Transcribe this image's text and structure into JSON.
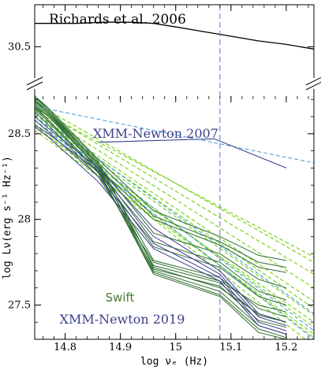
{
  "chart_data": {
    "type": "line",
    "xlabel": "log νₑ (Hz)",
    "ylabel": "log Lν(erg s⁻¹ Hz⁻¹)",
    "xlim": [
      14.745,
      15.25
    ],
    "ylim": [
      27.3,
      28.72
    ],
    "top_panel_ylim": [
      30.39,
      30.68
    ],
    "x_ticks": [
      "14.8",
      "14.9",
      "15",
      "15.1",
      "15.2"
    ],
    "y_ticks": [
      "27.5",
      "28",
      "28.5"
    ],
    "top_y_ticks": [
      "30.5"
    ],
    "vline_x": 15.08,
    "colors": {
      "richards": "#000000",
      "xmm2007": "#3b3f8c",
      "xmm2007_fit": "#3a9ad9",
      "vline": "#6b6fd0",
      "swift": "#2e6e2e",
      "swift_fit": "#7ed321",
      "xmm2019": "#3b3f8c",
      "xmm2019_fit": "#3a9ad9"
    },
    "annotations": {
      "richards": "Richards et al. 2006",
      "xmm2007": "XMM-Newton 2007",
      "swift": "Swift",
      "xmm2019": "XMM-Newton 2019"
    },
    "richards_sed": {
      "x": [
        14.745,
        14.78,
        14.82,
        14.87,
        14.92,
        14.96,
        15.0,
        15.05,
        15.1,
        15.15,
        15.2,
        15.25
      ],
      "y": [
        30.6,
        30.6,
        30.6,
        30.605,
        30.605,
        30.6,
        30.585,
        30.565,
        30.545,
        30.525,
        30.51,
        30.49
      ]
    },
    "xmm2007": {
      "line": {
        "x": [
          14.86,
          14.96,
          15.07,
          15.2
        ],
        "y": [
          28.45,
          28.46,
          28.47,
          28.3
        ]
      },
      "fit": {
        "x": [
          14.745,
          15.25
        ],
        "y": [
          28.66,
          28.33
        ]
      }
    },
    "x_bands": [
      14.745,
      14.77,
      14.86,
      14.96,
      15.08,
      15.15,
      15.2
    ],
    "swift_series": [
      [
        28.72,
        28.65,
        28.35,
        28.05,
        27.9,
        27.79,
        27.76
      ],
      [
        28.69,
        28.62,
        28.33,
        28.02,
        27.87,
        27.75,
        27.72
      ],
      [
        28.66,
        28.6,
        28.3,
        28.0,
        27.85,
        27.72,
        27.69
      ],
      [
        28.71,
        28.64,
        28.32,
        27.92,
        27.8,
        27.65,
        27.6
      ],
      [
        28.68,
        28.61,
        28.3,
        27.87,
        27.75,
        27.58,
        27.53
      ],
      [
        28.65,
        28.58,
        28.28,
        27.84,
        27.72,
        27.55,
        27.5
      ],
      [
        28.7,
        28.63,
        28.32,
        27.76,
        27.66,
        27.48,
        27.43
      ],
      [
        28.67,
        28.6,
        28.3,
        27.73,
        27.63,
        27.44,
        27.4
      ],
      [
        28.64,
        28.57,
        28.27,
        27.71,
        27.61,
        27.41,
        27.37
      ],
      [
        28.69,
        28.62,
        28.31,
        27.7,
        27.58,
        27.38,
        27.33
      ],
      [
        28.66,
        28.58,
        28.28,
        27.69,
        27.56,
        27.36,
        27.31
      ],
      [
        28.72,
        28.64,
        28.34,
        27.72,
        27.6,
        27.45,
        27.4
      ],
      [
        28.63,
        28.55,
        28.25,
        27.75,
        27.64,
        27.5,
        27.46
      ],
      [
        28.7,
        28.62,
        28.29,
        27.68,
        27.55,
        27.34,
        27.3
      ]
    ],
    "swift_fits": [
      {
        "x": [
          14.745,
          15.25
        ],
        "y": [
          28.68,
          27.75
        ]
      },
      {
        "x": [
          14.745,
          15.25
        ],
        "y": [
          28.66,
          27.68
        ]
      },
      {
        "x": [
          14.745,
          15.25
        ],
        "y": [
          28.64,
          27.6
        ]
      },
      {
        "x": [
          14.745,
          15.25
        ],
        "y": [
          28.62,
          27.52
        ]
      },
      {
        "x": [
          14.745,
          15.25
        ],
        "y": [
          28.6,
          27.44
        ]
      },
      {
        "x": [
          14.745,
          15.25
        ],
        "y": [
          28.58,
          27.37
        ]
      },
      {
        "x": [
          14.745,
          15.25
        ],
        "y": [
          28.56,
          27.31
        ]
      },
      {
        "x": [
          14.745,
          15.25
        ],
        "y": [
          28.55,
          27.26
        ]
      },
      {
        "x": [
          14.745,
          15.25
        ],
        "y": [
          28.65,
          27.78
        ]
      },
      {
        "x": [
          14.745,
          15.25
        ],
        "y": [
          28.54,
          27.4
        ]
      },
      {
        "x": [
          14.745,
          15.25
        ],
        "y": [
          28.52,
          27.33
        ]
      },
      {
        "x": [
          14.745,
          15.25
        ],
        "y": [
          28.61,
          27.48
        ]
      }
    ],
    "xmm2019_series": [
      [
        28.6,
        28.53,
        28.3,
        27.95,
        27.7,
        27.45,
        27.4
      ],
      [
        28.55,
        28.5,
        28.28,
        27.9,
        27.68,
        27.43,
        27.38
      ],
      [
        28.58,
        28.51,
        28.25,
        27.86,
        27.66,
        27.4,
        27.35
      ],
      [
        28.54,
        28.48,
        28.22,
        27.83,
        27.64,
        27.38,
        27.33
      ]
    ],
    "xmm2019_fits": [
      {
        "x": [
          14.745,
          15.25
        ],
        "y": [
          28.62,
          27.45
        ]
      },
      {
        "x": [
          14.745,
          15.25
        ],
        "y": [
          28.6,
          27.35
        ]
      },
      {
        "x": [
          14.745,
          15.25
        ],
        "y": [
          28.58,
          27.3
        ]
      }
    ]
  }
}
